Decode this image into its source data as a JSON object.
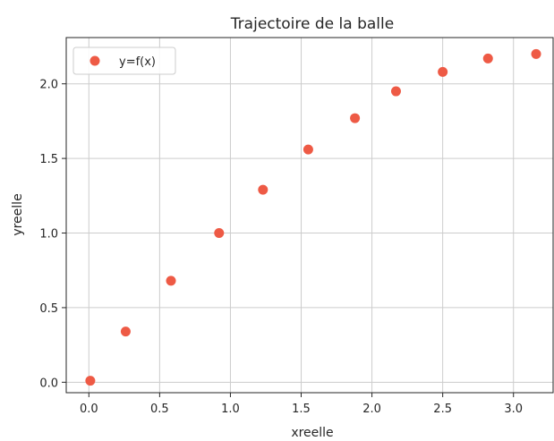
{
  "chart_data": {
    "type": "scatter",
    "title": "Trajectoire de la balle",
    "xlabel": "xreelle",
    "ylabel": "yreelle",
    "xlim": [
      -0.16,
      3.28
    ],
    "ylim": [
      -0.07,
      2.31
    ],
    "xticks": [
      0.0,
      0.5,
      1.0,
      1.5,
      2.0,
      2.5,
      3.0
    ],
    "xtick_labels": [
      "0.0",
      "0.5",
      "1.0",
      "1.5",
      "2.0",
      "2.5",
      "3.0"
    ],
    "yticks": [
      0.0,
      0.5,
      1.0,
      1.5,
      2.0
    ],
    "ytick_labels": [
      "0.0",
      "0.5",
      "1.0",
      "1.5",
      "2.0"
    ],
    "grid": true,
    "legend_position": "top-left",
    "series": [
      {
        "name": "y=f(x)",
        "color": "#ee5a45",
        "x": [
          0.01,
          0.26,
          0.58,
          0.92,
          1.23,
          1.55,
          1.88,
          2.17,
          2.5,
          2.82,
          3.16
        ],
        "y": [
          0.01,
          0.34,
          0.68,
          1.0,
          1.29,
          1.56,
          1.77,
          1.95,
          2.08,
          2.17,
          2.2
        ]
      }
    ]
  }
}
